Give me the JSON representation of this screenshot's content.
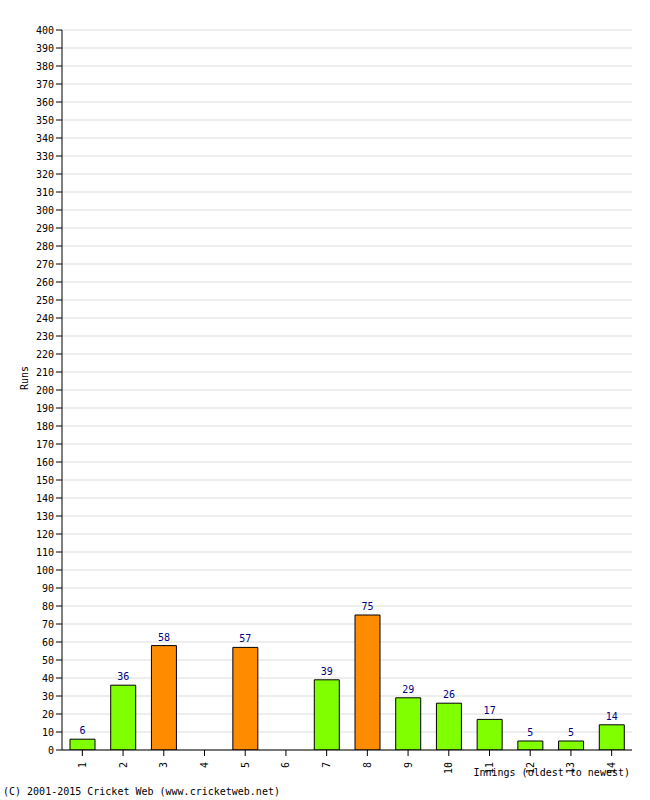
{
  "chart_data": {
    "type": "bar",
    "categories": [
      "1",
      "2",
      "3",
      "4",
      "5",
      "6",
      "7",
      "8",
      "9",
      "10",
      "11",
      "12",
      "13",
      "14"
    ],
    "values": [
      6,
      36,
      58,
      0,
      57,
      0,
      39,
      75,
      29,
      26,
      17,
      5,
      5,
      14
    ],
    "colors": [
      "#80ff00",
      "#80ff00",
      "#ff8c00",
      "#80ff00",
      "#ff8c00",
      "#80ff00",
      "#80ff00",
      "#ff8c00",
      "#80ff00",
      "#80ff00",
      "#80ff00",
      "#80ff00",
      "#80ff00",
      "#80ff00"
    ],
    "y_label": "Runs",
    "x_label": "Innings (oldest to newest)",
    "annotations": [
      "(C) 2001-2015 Cricket Web (www.cricketweb.net)"
    ],
    "ylim": [
      0,
      400
    ],
    "yticks": [
      0,
      10,
      20,
      30,
      40,
      50,
      60,
      70,
      80,
      90,
      100,
      110,
      120,
      130,
      140,
      150,
      160,
      170,
      180,
      190,
      200,
      210,
      220,
      230,
      240,
      250,
      260,
      270,
      280,
      290,
      300,
      310,
      320,
      330,
      340,
      350,
      360,
      370,
      380,
      390,
      400
    ],
    "grid": true,
    "data_labels": true
  }
}
